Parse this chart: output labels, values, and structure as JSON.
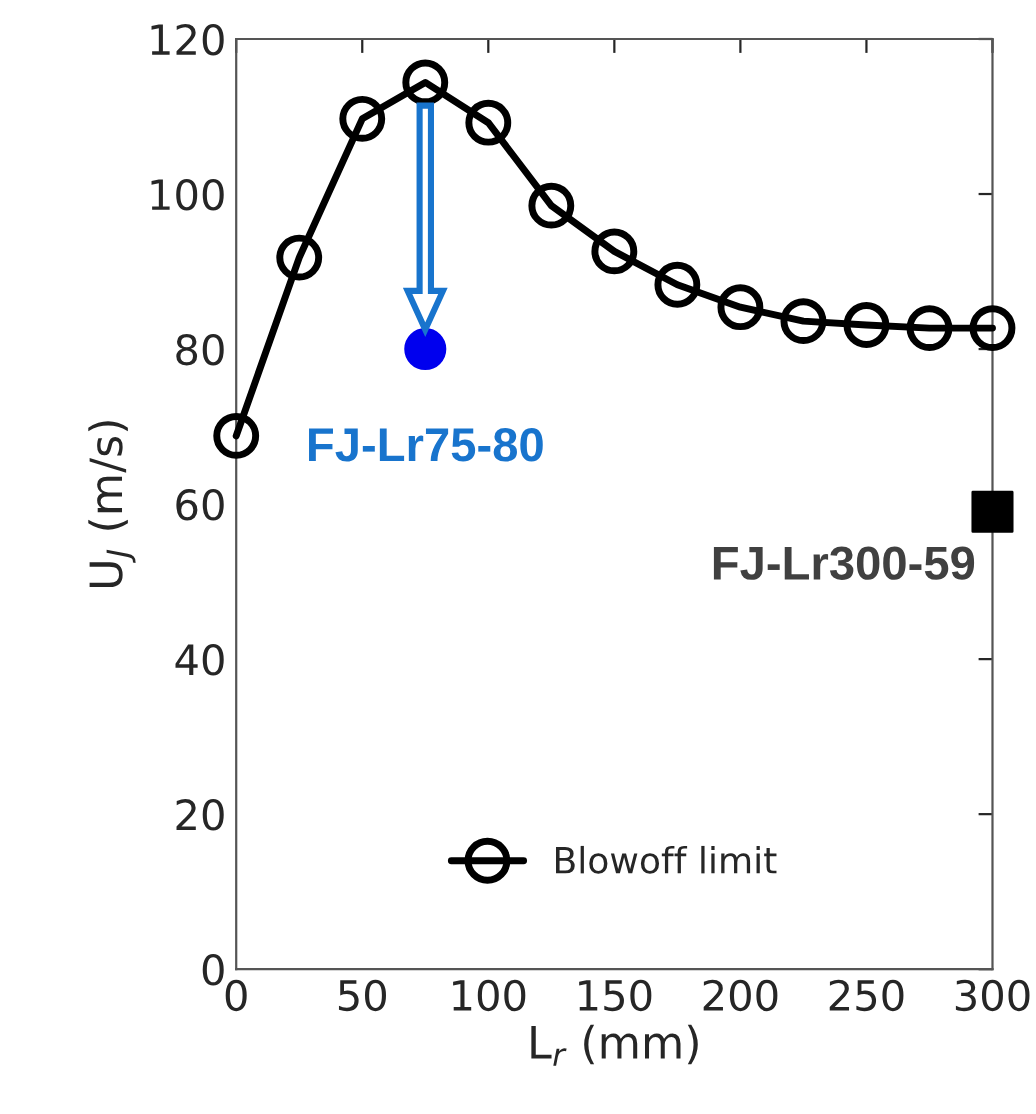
{
  "chart_data": {
    "type": "line",
    "xlabel": "L$_{r}$ (mm)",
    "ylabel": "U$_{J}$ (m/s)",
    "xlim": [
      0,
      300
    ],
    "ylim": [
      0,
      120
    ],
    "xticks": [
      0,
      50,
      100,
      150,
      200,
      250,
      300
    ],
    "yticks": [
      0,
      20,
      40,
      60,
      80,
      100,
      120
    ],
    "grid": false,
    "legend": "bottom",
    "series": [
      {
        "name": "Blowoff limit",
        "color": "#000000",
        "marker": "circle",
        "line_style": "solid",
        "x": [
          0,
          25,
          50,
          75,
          100,
          125,
          150,
          175,
          200,
          225,
          250,
          275,
          300
        ],
        "values": [
          68.8,
          91.8,
          109.7,
          114.4,
          109.2,
          98.5,
          92.6,
          88.3,
          85.4,
          83.6,
          83.1,
          82.7,
          82.7
        ]
      },
      {
        "type": "scatter",
        "color": "#0000ee",
        "marker": "circle",
        "x": [
          75
        ],
        "values": [
          80
        ]
      },
      {
        "type": "scatter",
        "color": "#000000",
        "marker": "square",
        "x": [
          300
        ],
        "values": [
          59
        ]
      }
    ],
    "annotations": [
      {
        "text": "FJ-Lr75-80",
        "x": 75,
        "y": 80
      },
      {
        "text": "FJ-Lr300-59",
        "x": 300,
        "y": 59
      }
    ]
  }
}
